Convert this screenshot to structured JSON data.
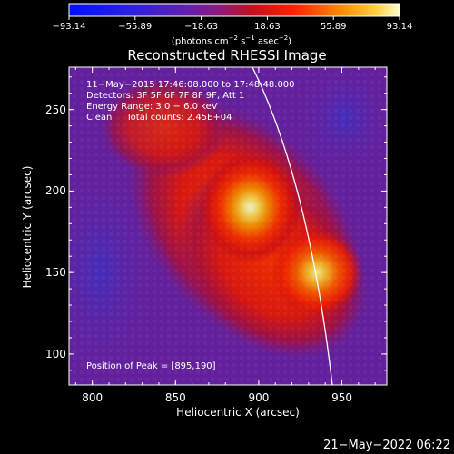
{
  "colorbar": {
    "ticks": [
      "−93.14",
      "−55.89",
      "−18.63",
      "18.63",
      "55.89",
      "93.14"
    ],
    "tick_values": [
      -93.14,
      -55.89,
      -18.63,
      18.63,
      55.89,
      93.14
    ],
    "range": [
      -93.14,
      93.14
    ],
    "unit_prefix": "(photons cm",
    "unit_exp1": "−2",
    "unit_mid": " s",
    "unit_exp2": "−1",
    "unit_mid2": " asec",
    "unit_exp3": "−2",
    "unit_suffix": ")"
  },
  "chart_data": {
    "type": "heatmap",
    "title": "Reconstructed RHESSI Image",
    "xlabel": "Heliocentric X (arcsec)",
    "ylabel": "Heliocentric Y (arcsec)",
    "xlim": [
      786,
      977
    ],
    "ylim": [
      81,
      276
    ],
    "x_ticks": [
      800,
      850,
      900,
      950
    ],
    "y_ticks": [
      100,
      150,
      200,
      250
    ],
    "sources": [
      {
        "x": 895,
        "y": 190,
        "peak": 93.14
      },
      {
        "x": 935,
        "y": 150,
        "peak": 75
      }
    ],
    "info_lines": [
      "11−May−2015 17:46:08.000 to 17:48:48.000",
      "Detectors: 3F 5F 6F 7F 8F 9F, Att 1",
      "Energy Range: 3.0 − 6.0 keV",
      "Clean     Total counts: 2.45E+04"
    ],
    "peak_note": "Position of Peak = [895,190]"
  },
  "datestamp": "21−May−2022 06:22"
}
